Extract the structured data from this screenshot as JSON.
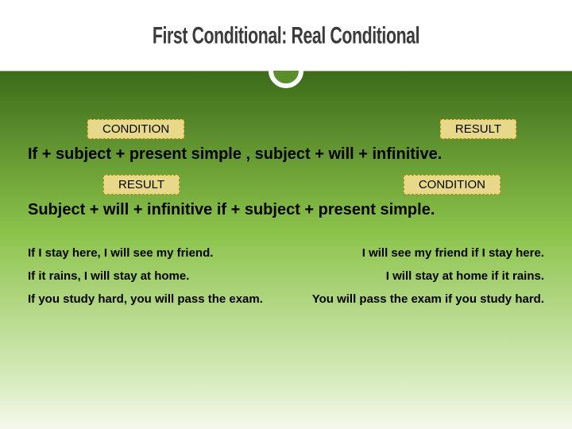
{
  "title": "First Conditional: Real Conditional",
  "colors": {
    "label_bg": "#e8d88a",
    "label_border": "#b8860b",
    "gradient_top": "#3d6b1a",
    "gradient_mid": "#8bc34a",
    "gradient_bottom": "#dfefc9"
  },
  "section1": {
    "label_left": "CONDITION",
    "label_right": "RESULT",
    "formula": "If + subject + present simple , subject  +  will + infinitive."
  },
  "section2": {
    "label_left": "RESULT",
    "label_right": "CONDITION",
    "formula": "Subject  +  will + infinitive if  + subject + present simple."
  },
  "examples": [
    {
      "left": "If I stay here, I will see my friend.",
      "right": "I will see my friend if I stay here."
    },
    {
      "left": "If it rains, I will stay at home.",
      "right": "I will stay at home if it rains."
    },
    {
      "left": "If you study hard, you will pass the exam.",
      "right": "You will pass the exam if you study hard."
    }
  ]
}
